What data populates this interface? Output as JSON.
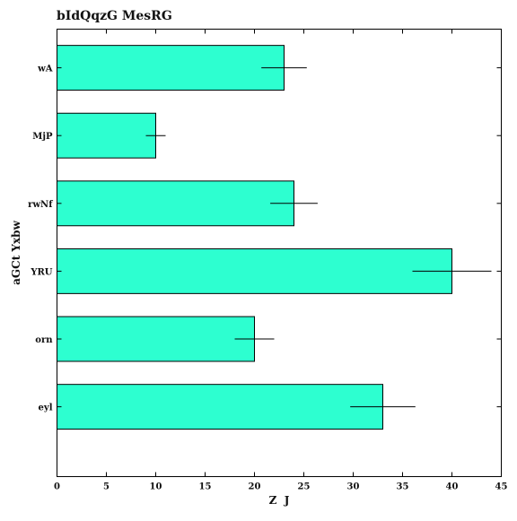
{
  "chart_data": {
    "type": "bar",
    "orientation": "horizontal",
    "title": "bIdQqzG MesRG",
    "xlabel": "Z  J",
    "ylabel": "aGCt Yxbw",
    "categories": [
      "wA",
      "MjP",
      "rwNf",
      "YRU",
      "orn",
      "eyl"
    ],
    "values": [
      23,
      10,
      24,
      40,
      20,
      33
    ],
    "errors": [
      2.3,
      1.0,
      2.4,
      4.0,
      2.0,
      3.3
    ],
    "xlim": [
      0,
      45
    ],
    "xticks": [
      0,
      5,
      10,
      15,
      20,
      25,
      30,
      35,
      40,
      45
    ],
    "grid": false,
    "bar_color": "#2dffd0",
    "edge_color": "#000000"
  }
}
